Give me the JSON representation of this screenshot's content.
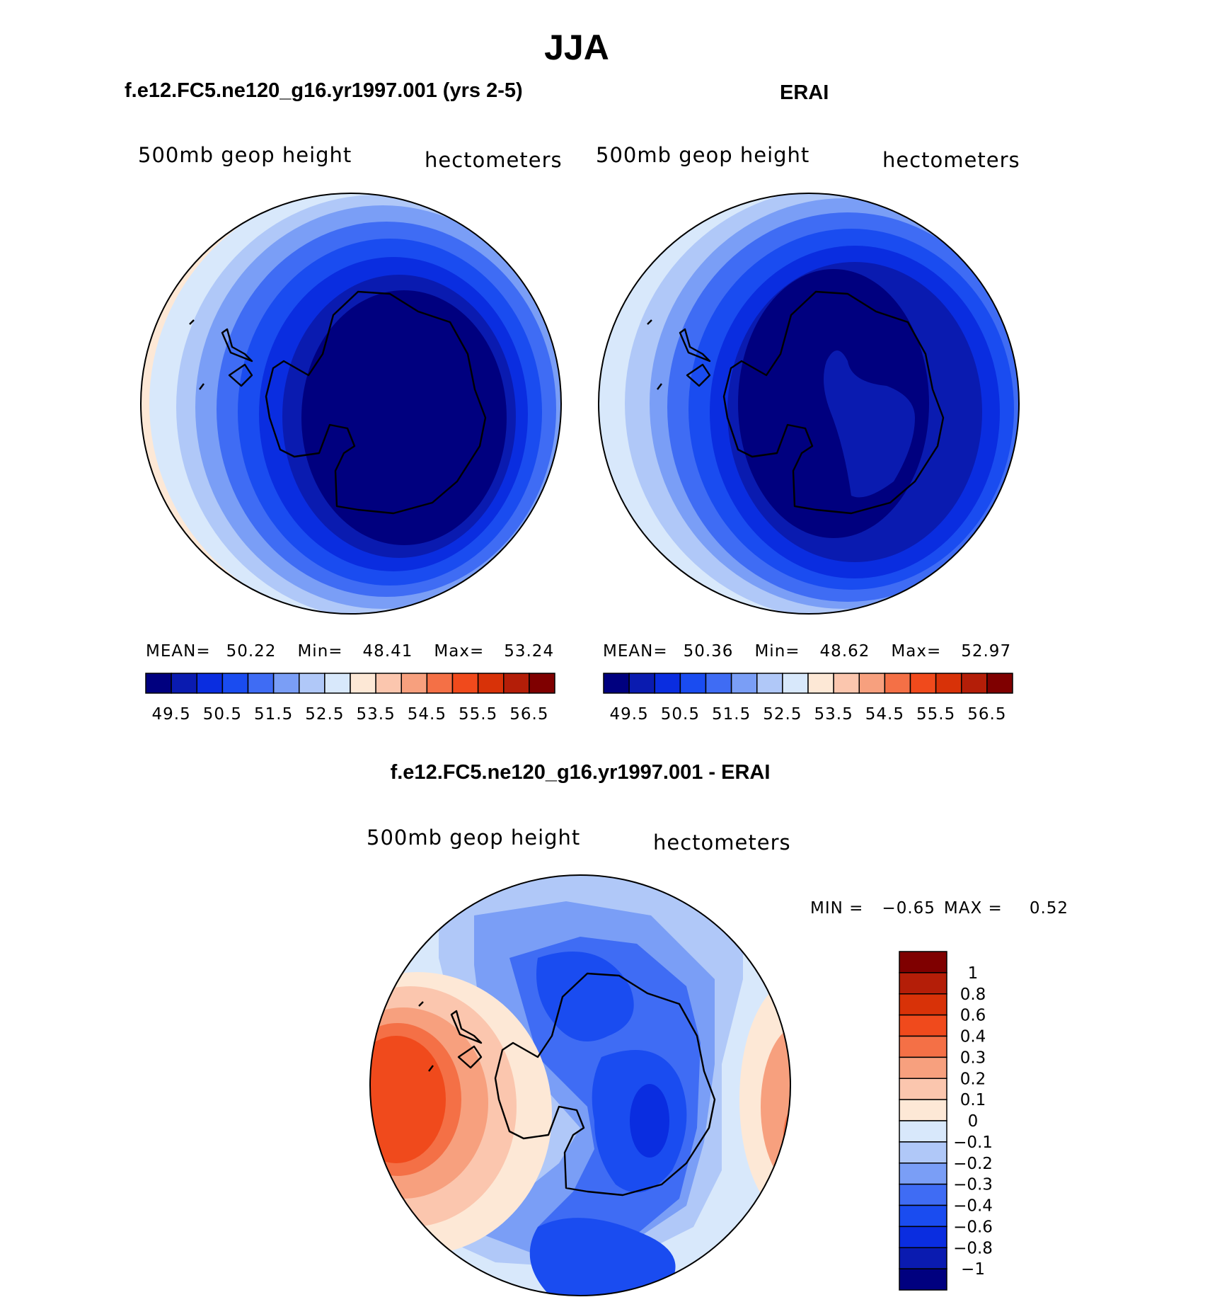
{
  "page": {
    "main_title": "JJA",
    "bottom_title": "f.e12.FC5.ne120_g16.yr1997.001 - ERAI"
  },
  "colors": {
    "abs_scale": [
      "#00007f",
      "#0a1bb0",
      "#0a2de0",
      "#1a4cf0",
      "#3f6cf4",
      "#7a9ef6",
      "#b0c8f8",
      "#d8e8fb",
      "#fde8d6",
      "#fbc6ae",
      "#f7a07e",
      "#f47046",
      "#f04a1c",
      "#d83208",
      "#b41e08",
      "#7f0000"
    ],
    "diff_scale": [
      "#00007f",
      "#0a1bb0",
      "#0a2de0",
      "#1a4cf0",
      "#3f6cf4",
      "#7a9ef6",
      "#b0c8f8",
      "#d8e8fb",
      "#fde8d6",
      "#fbc6ae",
      "#f7a07e",
      "#f47046",
      "#f04a1c",
      "#d83208",
      "#b41e08",
      "#7f0000"
    ]
  },
  "chart_data": [
    {
      "type": "heatmap",
      "projection": "south-polar-stereographic",
      "case_title": "f.e12.FC5.ne120_g16.yr1997.001 (yrs 2-5)",
      "left_label": "500mb geop height",
      "right_label": "hectometers",
      "stats": {
        "mean_label": "MEAN=",
        "mean": "50.22",
        "min_label": "Min=",
        "min": "48.41",
        "max_label": "Max=",
        "max": "53.24"
      },
      "contour_levels": [
        "49.5",
        "50.5",
        "51.5",
        "52.5",
        "53.5",
        "54.5",
        "55.5",
        "56.5"
      ],
      "legend_position": "bottom"
    },
    {
      "type": "heatmap",
      "projection": "south-polar-stereographic",
      "case_title": "ERAI",
      "left_label": "500mb geop height",
      "right_label": "hectometers",
      "stats": {
        "mean_label": "MEAN=",
        "mean": "50.36",
        "min_label": "Min=",
        "min": "48.62",
        "max_label": "Max=",
        "max": "52.97"
      },
      "contour_levels": [
        "49.5",
        "50.5",
        "51.5",
        "52.5",
        "53.5",
        "54.5",
        "55.5",
        "56.5"
      ],
      "legend_position": "bottom"
    },
    {
      "type": "heatmap",
      "projection": "south-polar-stereographic",
      "case_title": "",
      "left_label": "500mb geop height",
      "right_label": "hectometers",
      "range": {
        "min_label": "MIN =",
        "min": "−0.65",
        "max_label": "MAX =",
        "max": "0.52"
      },
      "contour_levels": [
        "1",
        "0.8",
        "0.6",
        "0.4",
        "0.3",
        "0.2",
        "0.1",
        "0",
        "−0.1",
        "−0.2",
        "−0.3",
        "−0.4",
        "−0.6",
        "−0.8",
        "−1"
      ],
      "legend_position": "right"
    }
  ]
}
